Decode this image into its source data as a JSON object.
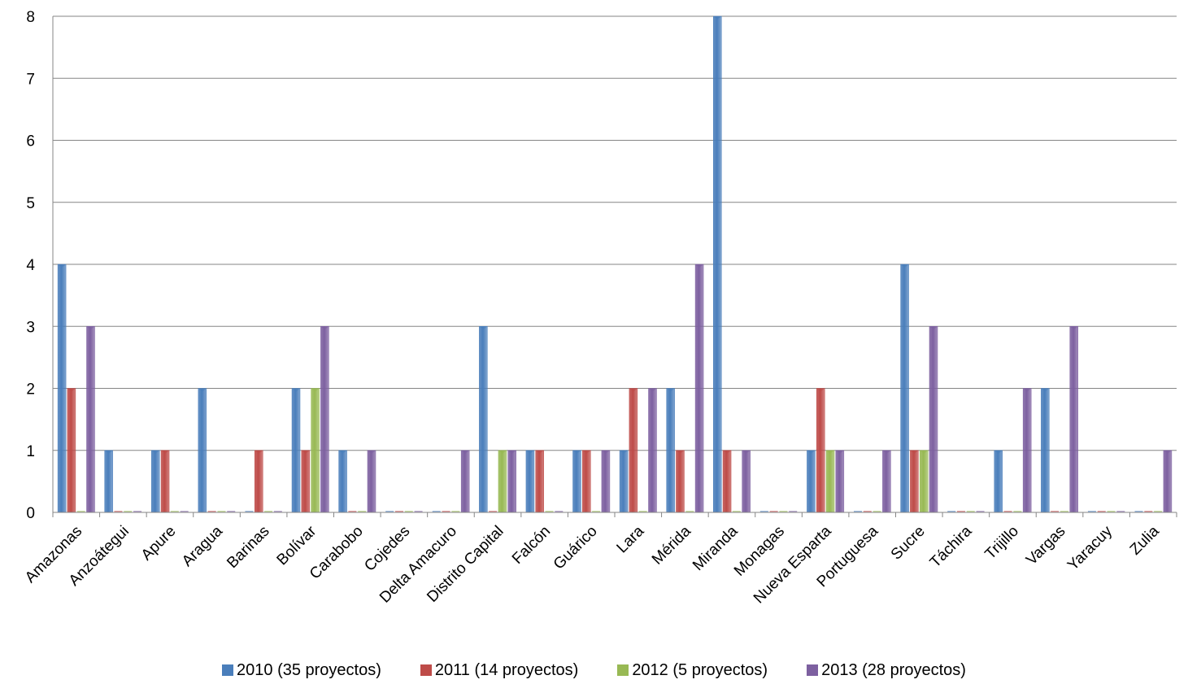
{
  "chart_data": {
    "type": "bar",
    "categories": [
      "Amazonas",
      "Anzoátegui",
      "Apure",
      "Aragua",
      "Barinas",
      "Bolívar",
      "Carabobo",
      "Cojedes",
      "Delta Amacuro",
      "Distrito Capital",
      "Falcón",
      "Guárico",
      "Lara",
      "Mérida",
      "Miranda",
      "Monagas",
      "Nueva Esparta",
      "Portuguesa",
      "Sucre",
      "Táchira",
      "Trijillo",
      "Vargas",
      "Yaracuy",
      "Zulia"
    ],
    "series": [
      {
        "name": "2010 (35 proyectos)",
        "color": "#4a7ebb",
        "values": [
          4,
          1,
          1,
          2,
          0,
          2,
          1,
          0,
          0,
          3,
          1,
          1,
          1,
          2,
          8,
          0,
          1,
          0,
          4,
          0,
          1,
          2,
          0,
          0
        ]
      },
      {
        "name": "2011 (14 proyectos)",
        "color": "#be4b48",
        "values": [
          2,
          0,
          1,
          0,
          1,
          1,
          0,
          0,
          0,
          0,
          1,
          1,
          2,
          1,
          1,
          0,
          2,
          0,
          1,
          0,
          0,
          0,
          0,
          0
        ]
      },
      {
        "name": "2012 (5 proyectos)",
        "color": "#98b954",
        "values": [
          0,
          0,
          0,
          0,
          0,
          2,
          0,
          0,
          0,
          1,
          0,
          0,
          0,
          0,
          0,
          0,
          1,
          0,
          1,
          0,
          0,
          0,
          0,
          0
        ]
      },
      {
        "name": "2013 (28 proyectos)",
        "color": "#7d60a0",
        "values": [
          3,
          0,
          0,
          0,
          0,
          3,
          1,
          0,
          1,
          1,
          0,
          1,
          2,
          4,
          1,
          0,
          1,
          1,
          3,
          0,
          2,
          3,
          0,
          1
        ]
      }
    ],
    "yticks": [
      "0",
      "1",
      "2",
      "3",
      "4",
      "5",
      "6",
      "7",
      "8"
    ],
    "ylim": [
      0,
      8
    ],
    "grid": true,
    "legend_position": "bottom",
    "title": "",
    "xlabel": "",
    "ylabel": ""
  }
}
